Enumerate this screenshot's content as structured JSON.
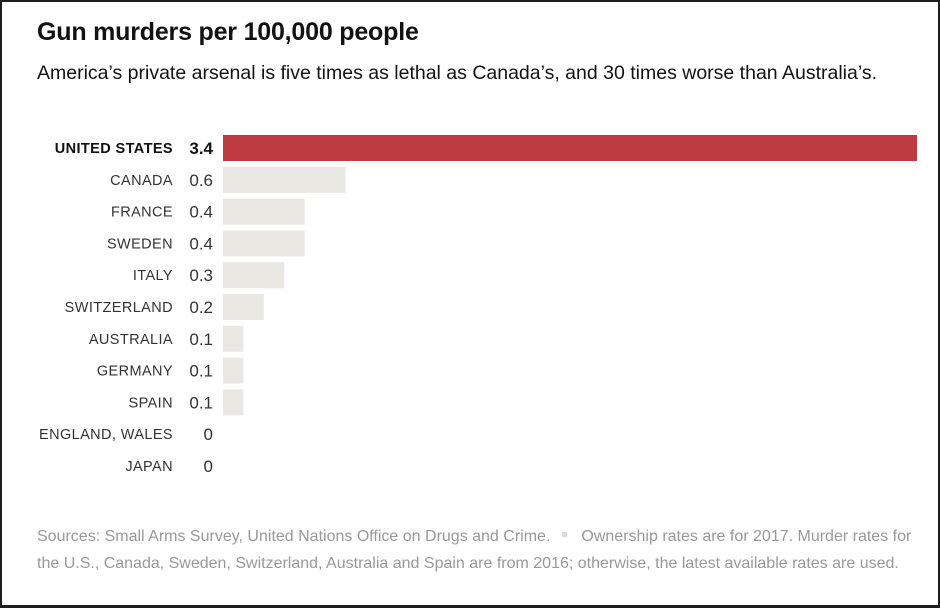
{
  "header": {
    "title": "Gun murders per 100,000 people",
    "subtitle": "America’s private arsenal is five times as lethal as Canada’s, and 30 times worse than Australia’s."
  },
  "colors": {
    "highlight": "#bd3b41",
    "bar": "#e9e8e2",
    "label": "#333333",
    "label_highlight": "#121212",
    "footer": "#999999"
  },
  "chart_data": {
    "type": "bar",
    "orientation": "horizontal",
    "title": "Gun murders per 100,000 people",
    "xlabel": "",
    "ylabel": "",
    "xlim": [
      0,
      3.4
    ],
    "grid": false,
    "highlight_category": "UNITED STATES",
    "categories": [
      "UNITED STATES",
      "CANADA",
      "FRANCE",
      "SWEDEN",
      "ITALY",
      "SWITZERLAND",
      "AUSTRALIA",
      "GERMANY",
      "SPAIN",
      "ENGLAND, WALES",
      "JAPAN"
    ],
    "values": [
      3.4,
      0.6,
      0.4,
      0.4,
      0.3,
      0.2,
      0.1,
      0.1,
      0.1,
      0,
      0
    ],
    "value_labels": [
      "3.4",
      "0.6",
      "0.4",
      "0.4",
      "0.3",
      "0.2",
      "0.1",
      "0.1",
      "0.1",
      "0",
      "0"
    ]
  },
  "footer": {
    "sources": "Sources: Small Arms Survey, United Nations Office on Drugs and Crime.",
    "note": "Ownership rates are for 2017. Murder rates for the U.S., Canada, Sweden, Switzerland, Australia and Spain are from 2016; otherwise, the latest available rates are used."
  }
}
